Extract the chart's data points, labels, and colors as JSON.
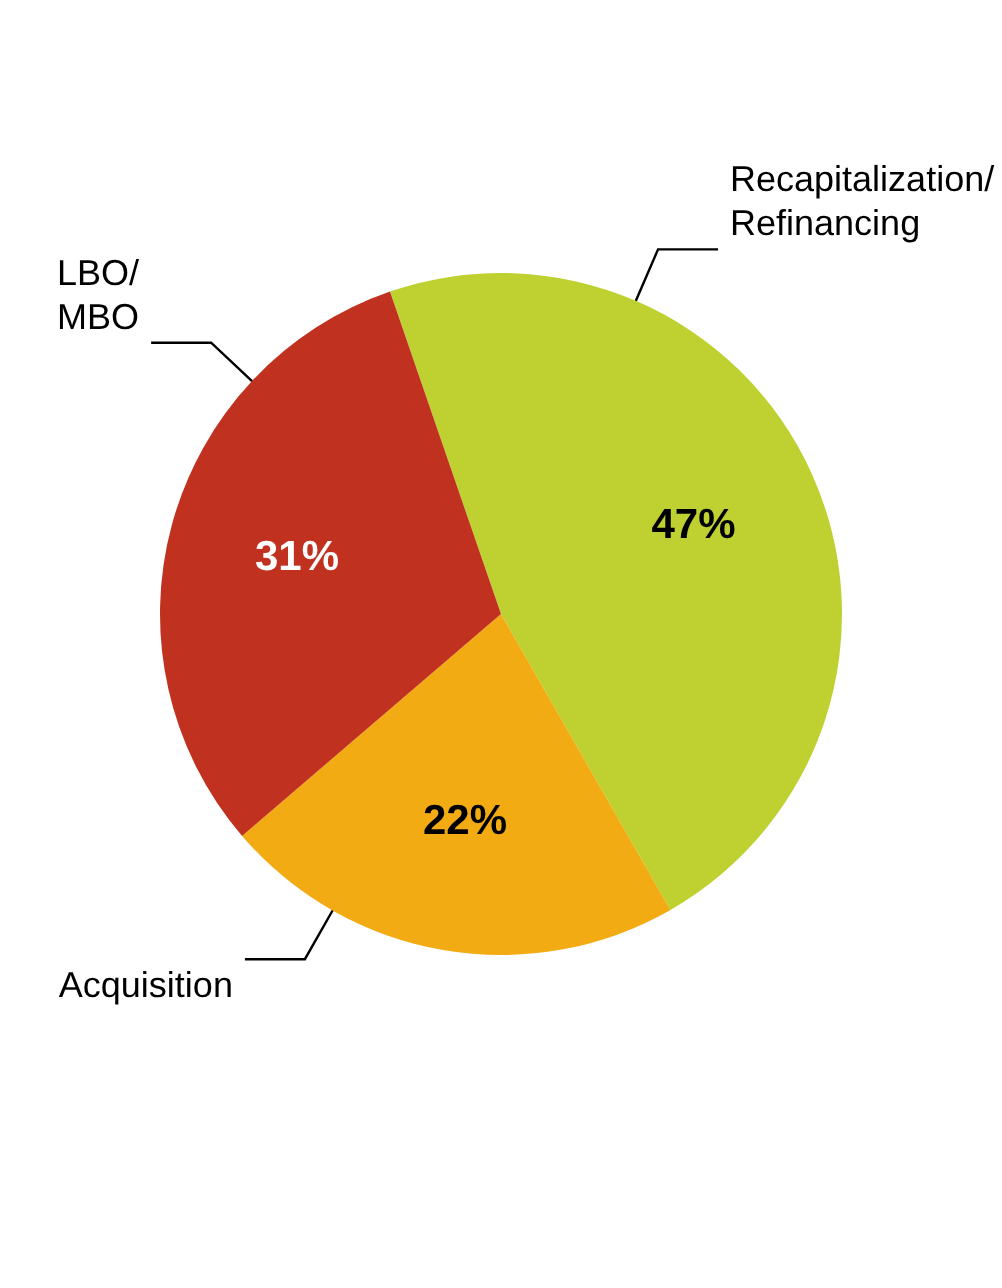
{
  "chart_data": {
    "type": "pie",
    "categories": [
      "Recapitalization/Refinancing",
      "Acquisition",
      "LBO/MBO"
    ],
    "values": [
      47,
      22,
      31
    ],
    "value_labels": [
      "47%",
      "22%",
      "31%"
    ],
    "colors": [
      "#bfd130",
      "#f2ab13",
      "#c0321f"
    ],
    "legend": false
  }
}
